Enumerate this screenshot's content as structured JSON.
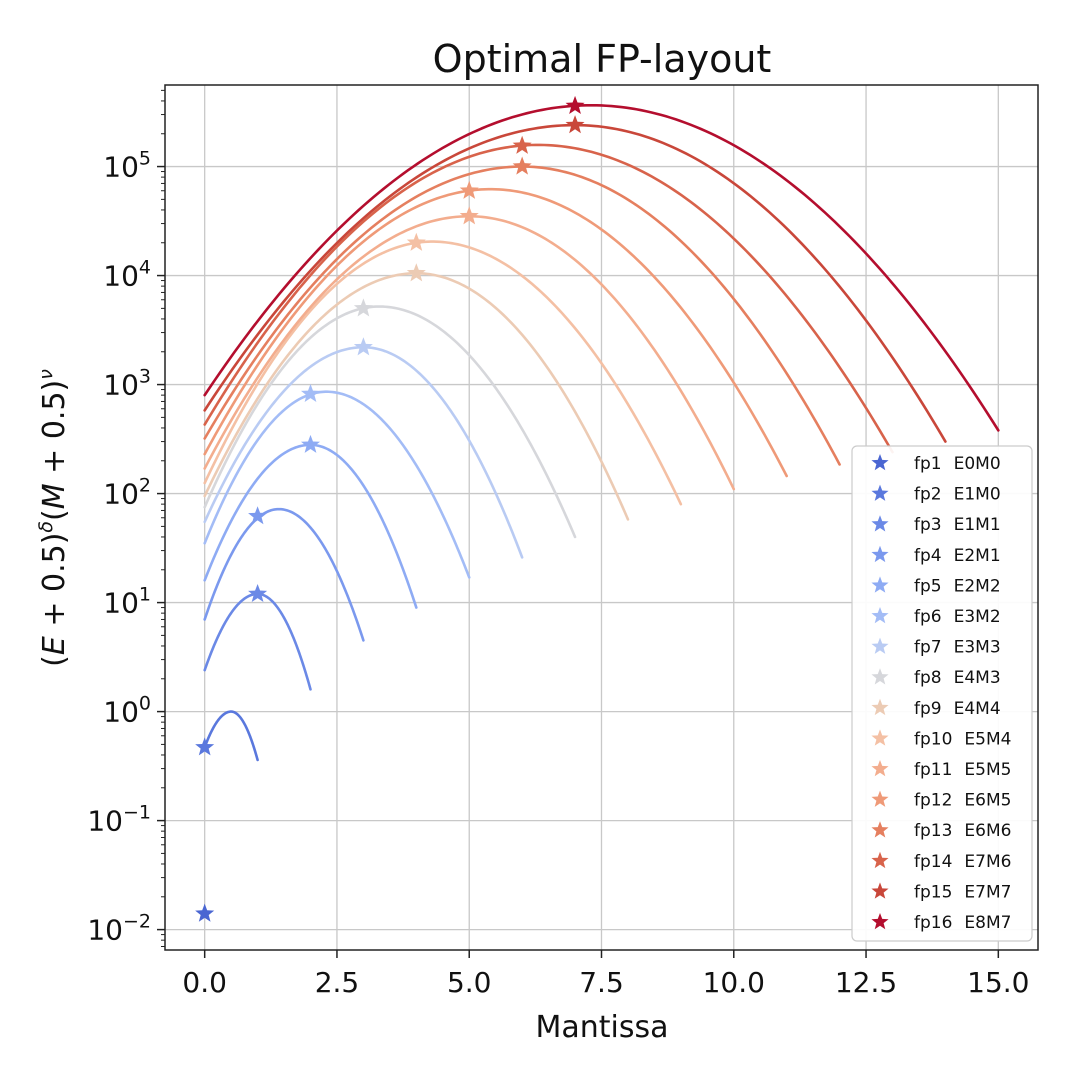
{
  "chart_data": {
    "type": "line",
    "title": "Optimal FP-layout",
    "xlabel": "Mantissa",
    "ylabel": "(E + 0.5)^δ(M + 0.5)^ν",
    "ylabel_parts": {
      "open": "(",
      "e": "E",
      "plus1": " + 0.5)",
      "delta": "δ",
      "mid": "(",
      "m": "M",
      "plus2": " + 0.5)",
      "nu": "ν"
    },
    "xscale": "linear",
    "yscale": "log",
    "xlim": [
      -0.75,
      15.75
    ],
    "ylim": [
      0.0065,
      560000
    ],
    "grid": true,
    "legend_position": "lower-right",
    "x_ticks": [
      {
        "value": 0,
        "label": "0.0"
      },
      {
        "value": 2.5,
        "label": "2.5"
      },
      {
        "value": 5,
        "label": "5.0"
      },
      {
        "value": 7.5,
        "label": "7.5"
      },
      {
        "value": 10,
        "label": "10.0"
      },
      {
        "value": 12.5,
        "label": "12.5"
      },
      {
        "value": 15,
        "label": "15.0"
      }
    ],
    "y_ticks": [
      {
        "value": 0.01,
        "base": "10",
        "exp": "−2"
      },
      {
        "value": 0.1,
        "base": "10",
        "exp": "−1"
      },
      {
        "value": 1,
        "base": "10",
        "exp": "0"
      },
      {
        "value": 10,
        "base": "10",
        "exp": "1"
      },
      {
        "value": 100,
        "base": "10",
        "exp": "2"
      },
      {
        "value": 1000,
        "base": "10",
        "exp": "3"
      },
      {
        "value": 10000,
        "base": "10",
        "exp": "4"
      },
      {
        "value": 100000,
        "base": "10",
        "exp": "5"
      }
    ],
    "series": [
      {
        "name": "fp1",
        "format": "E0M0",
        "color": "#4a66d2",
        "star": [
          0,
          0.014
        ],
        "curve": null
      },
      {
        "name": "fp2",
        "format": "E1M0",
        "color": "#5a78dd",
        "star": [
          0,
          0.47
        ],
        "curve": {
          "x_end": 1,
          "x_peak": 0.5,
          "y_start": 0.47,
          "y_peak": 1.0,
          "y_end": 0.36
        }
      },
      {
        "name": "fp3",
        "format": "E1M1",
        "color": "#6b89e6",
        "star": [
          1,
          12
        ],
        "curve": {
          "x_end": 2,
          "x_peak": 1.0,
          "y_start": 2.4,
          "y_peak": 12,
          "y_end": 1.6
        }
      },
      {
        "name": "fp4",
        "format": "E2M1",
        "color": "#7b99ee",
        "star": [
          1,
          62
        ],
        "curve": {
          "x_end": 3,
          "x_peak": 1.4,
          "y_start": 7,
          "y_peak": 72,
          "y_end": 4.5
        }
      },
      {
        "name": "fp5",
        "format": "E2M2",
        "color": "#8eabf4",
        "star": [
          2,
          280
        ],
        "curve": {
          "x_end": 4,
          "x_peak": 2.0,
          "y_start": 16,
          "y_peak": 280,
          "y_end": 9
        }
      },
      {
        "name": "fp6",
        "format": "E3M2",
        "color": "#a3bcf6",
        "star": [
          2,
          820
        ],
        "curve": {
          "x_end": 5,
          "x_peak": 2.3,
          "y_start": 35,
          "y_peak": 860,
          "y_end": 17
        }
      },
      {
        "name": "fp7",
        "format": "E3M3",
        "color": "#b9cbf3",
        "star": [
          3,
          2200
        ],
        "curve": {
          "x_end": 6,
          "x_peak": 3.0,
          "y_start": 55,
          "y_peak": 2200,
          "y_end": 26
        }
      },
      {
        "name": "fp8",
        "format": "E4M3",
        "color": "#d6d7db",
        "star": [
          3,
          5000
        ],
        "curve": {
          "x_end": 7,
          "x_peak": 3.3,
          "y_start": 75,
          "y_peak": 5200,
          "y_end": 40
        }
      },
      {
        "name": "fp9",
        "format": "E4M4",
        "color": "#eccbb4",
        "star": [
          4,
          10500
        ],
        "curve": {
          "x_end": 8,
          "x_peak": 4.0,
          "y_start": 95,
          "y_peak": 10500,
          "y_end": 58
        }
      },
      {
        "name": "fp10",
        "format": "E5M4",
        "color": "#f4c0a4",
        "star": [
          4,
          20000
        ],
        "curve": {
          "x_end": 9,
          "x_peak": 4.3,
          "y_start": 125,
          "y_peak": 20500,
          "y_end": 80
        }
      },
      {
        "name": "fp11",
        "format": "E5M5",
        "color": "#f3ad8e",
        "star": [
          5,
          35000
        ],
        "curve": {
          "x_end": 10,
          "x_peak": 5.0,
          "y_start": 170,
          "y_peak": 35000,
          "y_end": 110
        }
      },
      {
        "name": "fp12",
        "format": "E6M5",
        "color": "#ef9a78",
        "star": [
          5,
          60000
        ],
        "curve": {
          "x_end": 11,
          "x_peak": 5.4,
          "y_start": 230,
          "y_peak": 62000,
          "y_end": 145
        }
      },
      {
        "name": "fp13",
        "format": "E6M6",
        "color": "#e57f5f",
        "star": [
          6,
          100000
        ],
        "curve": {
          "x_end": 12,
          "x_peak": 6.0,
          "y_start": 320,
          "y_peak": 100000,
          "y_end": 185
        }
      },
      {
        "name": "fp14",
        "format": "E7M6",
        "color": "#d8634b",
        "star": [
          6,
          155000
        ],
        "curve": {
          "x_end": 13,
          "x_peak": 6.3,
          "y_start": 430,
          "y_peak": 158000,
          "y_end": 240
        }
      },
      {
        "name": "fp15",
        "format": "E7M7",
        "color": "#c9473a",
        "star": [
          7,
          240000
        ],
        "curve": {
          "x_end": 14,
          "x_peak": 7.0,
          "y_start": 580,
          "y_peak": 240000,
          "y_end": 300
        }
      },
      {
        "name": "fp16",
        "format": "E8M7",
        "color": "#b40e2e",
        "star": [
          7,
          360000
        ],
        "curve": {
          "x_end": 15,
          "x_peak": 7.3,
          "y_start": 800,
          "y_peak": 365000,
          "y_end": 380
        }
      }
    ]
  }
}
